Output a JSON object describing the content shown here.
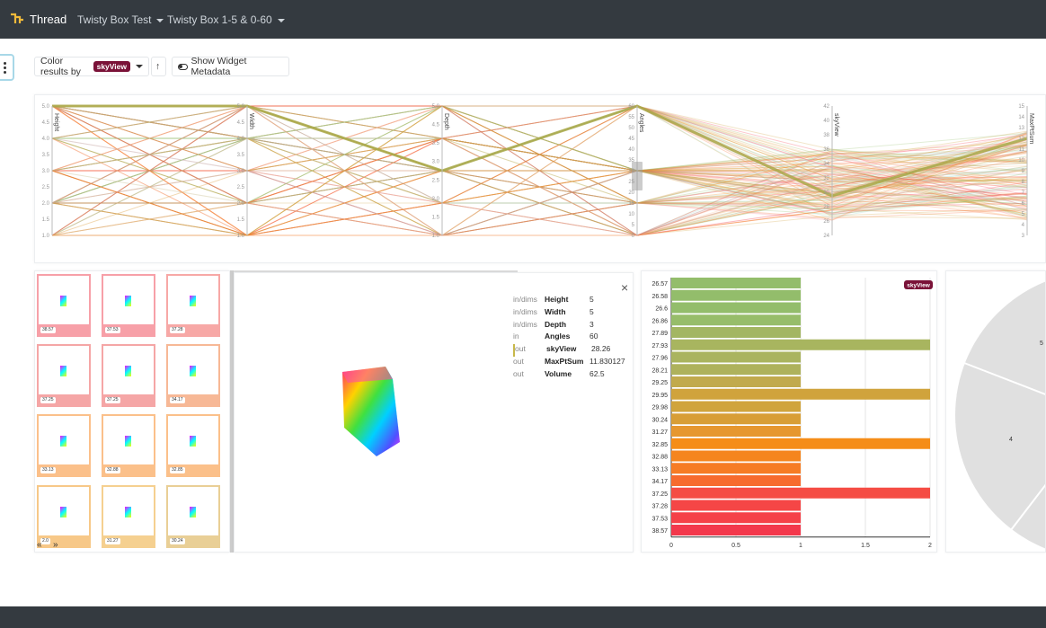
{
  "header": {
    "brand": "Thread",
    "menus": [
      {
        "label": "Twisty Box Test"
      },
      {
        "label": "Twisty Box 1-5 & 0-60"
      }
    ]
  },
  "toolbar": {
    "color_by_label": "Color results by",
    "color_by_value": "skyView",
    "sort_icon": "↑",
    "metadata_label": "Show Widget Metadata"
  },
  "parallel_axes": {
    "axes": [
      {
        "name": "Height",
        "ticks": [
          "5.0",
          "4.5",
          "4.0",
          "3.5",
          "3.0",
          "2.5",
          "2.0",
          "1.5",
          "1.0"
        ]
      },
      {
        "name": "Width",
        "ticks": [
          "5.0",
          "4.5",
          "4.0",
          "3.5",
          "3.0",
          "2.5",
          "2.0",
          "1.5",
          "1.0"
        ]
      },
      {
        "name": "Depth",
        "ticks": [
          "5.0",
          "4.5",
          "3.5",
          "3.0",
          "2.5",
          "2.0",
          "1.5",
          "1.0"
        ]
      },
      {
        "name": "Angles",
        "ticks": [
          "60",
          "55",
          "50",
          "45",
          "40",
          "35",
          "30",
          "25",
          "20",
          "15",
          "10",
          "5",
          "0"
        ]
      },
      {
        "name": "skyView",
        "ticks": [
          "42",
          "40",
          "38",
          "36",
          "34",
          "32",
          "30",
          "28",
          "26",
          "24"
        ]
      },
      {
        "name": "MaxPtSum",
        "ticks": [
          "15",
          "14",
          "13",
          "12",
          "11",
          "10",
          "9",
          "8",
          "7",
          "6",
          "5",
          "4",
          "3"
        ]
      }
    ]
  },
  "thumbnails": [
    {
      "label": "38.57",
      "color": "#f7a0a8"
    },
    {
      "label": "37.53",
      "color": "#f7a0a8"
    },
    {
      "label": "37.28",
      "color": "#f7a8a6"
    },
    {
      "label": "37.25",
      "color": "#f5a6a6"
    },
    {
      "label": "37.25",
      "color": "#f5a6a6"
    },
    {
      "label": "34.17",
      "color": "#f7b896"
    },
    {
      "label": "33.13",
      "color": "#fbc08a"
    },
    {
      "label": "32.88",
      "color": "#fbc08a"
    },
    {
      "label": "32.85",
      "color": "#fbc08a"
    },
    {
      "label": "2.0",
      "color": "#f7c888"
    },
    {
      "label": "31.27",
      "color": "#f5d090"
    },
    {
      "label": "30.24",
      "color": "#e9cf96"
    }
  ],
  "thumb_nav": {
    "prev": "«",
    "next": "»"
  },
  "selection": {
    "rows": [
      {
        "kind": "in/dims",
        "name": "Height",
        "value": "5"
      },
      {
        "kind": "in/dims",
        "name": "Width",
        "value": "5"
      },
      {
        "kind": "in/dims",
        "name": "Depth",
        "value": "3"
      },
      {
        "kind": "in",
        "name": "Angles",
        "value": "60"
      },
      {
        "kind": "out",
        "name": "skyView",
        "value": "28.26"
      },
      {
        "kind": "out",
        "name": "MaxPtSum",
        "value": "11.830127"
      },
      {
        "kind": "out",
        "name": "Volume",
        "value": "62.5"
      }
    ],
    "close": "×"
  },
  "chart_data": {
    "type": "bar",
    "orientation": "horizontal",
    "badge": "skyView",
    "categories": [
      "26.57",
      "26.58",
      "26.6",
      "26.86",
      "27.89",
      "27.93",
      "27.96",
      "28.21",
      "29.25",
      "29.95",
      "29.98",
      "30.24",
      "31.27",
      "32.85",
      "32.88",
      "33.13",
      "34.17",
      "37.25",
      "37.28",
      "37.53",
      "38.57"
    ],
    "values": [
      1,
      1,
      1,
      1,
      1,
      2,
      1,
      1,
      1,
      2,
      1,
      1,
      1,
      2,
      1,
      1,
      1,
      2,
      1,
      1,
      1
    ],
    "colors": [
      "#93bd6b",
      "#93bd6b",
      "#93bd6b",
      "#97bd6a",
      "#a3b662",
      "#a8b55f",
      "#aab45f",
      "#aeb25c",
      "#c1aa4d",
      "#d0a33c",
      "#d0a43d",
      "#d89e36",
      "#e6972f",
      "#f58d18",
      "#f5851e",
      "#f67c25",
      "#f76b2e",
      "#f54c44",
      "#f54646",
      "#f54148",
      "#f3384c"
    ],
    "xticks": [
      "0",
      "0.5",
      "1",
      "1.5",
      "2"
    ],
    "xlim": [
      0,
      2
    ]
  },
  "pie": {
    "labels": [
      "5",
      "4"
    ]
  }
}
